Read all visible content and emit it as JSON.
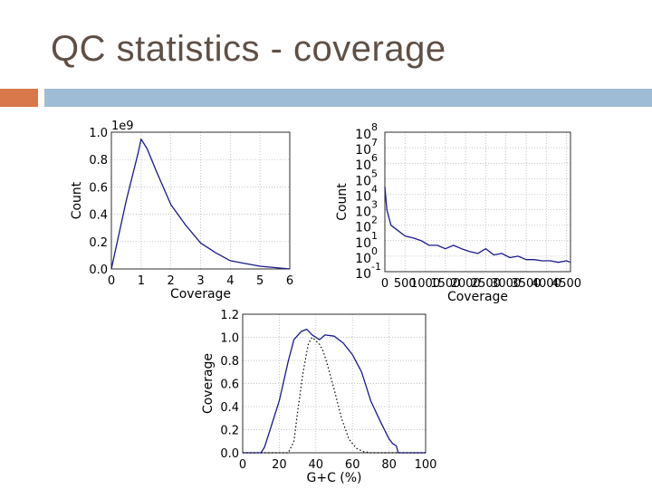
{
  "slide": {
    "title": "QC statistics - coverage"
  },
  "colors": {
    "accent_orange": "#d9784a",
    "accent_blue": "#9fbcd6",
    "title": "#5f4f45",
    "series_blue": "#1a1a8c"
  },
  "chart_data": [
    {
      "id": "coverage-histogram",
      "type": "line",
      "xlabel": "Coverage",
      "ylabel": "Count",
      "multiplier_label": "1e9",
      "xlim": [
        0,
        6
      ],
      "ylim": [
        0,
        1.0
      ],
      "xticks": [
        0,
        1,
        2,
        3,
        4,
        5,
        6
      ],
      "xtick_labels": [
        "0",
        "1",
        "2",
        "3",
        "4",
        "5",
        "6"
      ],
      "yticks": [
        0,
        0.2,
        0.4,
        0.6,
        0.8,
        1.0
      ],
      "ytick_labels": [
        "0.0",
        "0.2",
        "0.4",
        "0.6",
        "0.8",
        "1.0"
      ],
      "grid": true,
      "series": [
        {
          "color": "#1a1a8c",
          "style": "solid",
          "x": [
            0,
            0.5,
            0.9,
            1.0,
            1.2,
            1.5,
            2.0,
            2.5,
            3.0,
            3.5,
            4.0,
            4.5,
            5.0,
            5.5,
            6.0
          ],
          "y": [
            0.0,
            0.5,
            0.85,
            0.95,
            0.88,
            0.72,
            0.47,
            0.32,
            0.19,
            0.12,
            0.06,
            0.04,
            0.02,
            0.01,
            0.0
          ]
        }
      ]
    },
    {
      "id": "coverage-log-histogram",
      "type": "line",
      "xlabel": "Coverage",
      "ylabel": "Count",
      "yscale": "log",
      "xlim": [
        0,
        4600
      ],
      "ylim": [
        0.1,
        100000000
      ],
      "xticks": [
        0,
        500,
        1000,
        1500,
        2000,
        2500,
        3000,
        3500,
        4000,
        4500
      ],
      "xtick_labels": [
        "0",
        "500",
        "1000",
        "1500",
        "2000",
        "2500",
        "3000",
        "3500",
        "4000",
        "4500"
      ],
      "yticks_exp": [
        -1,
        0,
        1,
        2,
        3,
        4,
        5,
        6,
        7,
        8
      ],
      "ytick_base": "10",
      "grid": true,
      "series": [
        {
          "color": "#1a1a8c",
          "style": "solid",
          "x": [
            0,
            50,
            150,
            300,
            500,
            700,
            900,
            1100,
            1300,
            1500,
            1700,
            1900,
            2100,
            2300,
            2500,
            2700,
            2900,
            3100,
            3300,
            3500,
            3700,
            3900,
            4100,
            4300,
            4500,
            4600
          ],
          "y": [
            30000,
            1000,
            100,
            50,
            20,
            15,
            10,
            5,
            5,
            3,
            5,
            3,
            2,
            1.5,
            3,
            1.2,
            1.5,
            0.8,
            1,
            0.6,
            0.6,
            0.5,
            0.5,
            0.4,
            0.5,
            0.4
          ]
        }
      ]
    },
    {
      "id": "gc-coverage",
      "type": "line",
      "xlabel": "G+C (%)",
      "ylabel": "Coverage",
      "xlim": [
        0,
        100
      ],
      "ylim": [
        0,
        1.2
      ],
      "xticks": [
        0,
        20,
        40,
        60,
        80,
        100
      ],
      "xtick_labels": [
        "0",
        "20",
        "40",
        "60",
        "80",
        "100"
      ],
      "yticks": [
        0,
        0.2,
        0.4,
        0.6,
        0.8,
        1.0,
        1.2
      ],
      "ytick_labels": [
        "0.0",
        "0.2",
        "0.4",
        "0.6",
        "0.8",
        "1.0",
        "1.2"
      ],
      "grid": true,
      "series": [
        {
          "color": "#1a1a8c",
          "style": "solid",
          "x": [
            0,
            10,
            12,
            15,
            20,
            25,
            28,
            32,
            35,
            38,
            40,
            42,
            45,
            50,
            55,
            60,
            65,
            70,
            75,
            80,
            82,
            84,
            85,
            100
          ],
          "y": [
            0,
            0,
            0.05,
            0.2,
            0.45,
            0.8,
            0.98,
            1.05,
            1.07,
            1.02,
            1.0,
            0.98,
            1.02,
            1.01,
            0.95,
            0.85,
            0.7,
            0.45,
            0.28,
            0.12,
            0.08,
            0.06,
            0.0,
            0.0
          ]
        },
        {
          "color": "#000000",
          "style": "dotted",
          "x": [
            0,
            25,
            28,
            30,
            33,
            36,
            38,
            40,
            42,
            44,
            46,
            50,
            54,
            58,
            62,
            66,
            70,
            100
          ],
          "y": [
            0,
            0,
            0.1,
            0.35,
            0.7,
            0.95,
            1.0,
            0.97,
            0.94,
            0.88,
            0.78,
            0.55,
            0.3,
            0.12,
            0.04,
            0.01,
            0.0,
            0.0
          ]
        }
      ]
    }
  ]
}
